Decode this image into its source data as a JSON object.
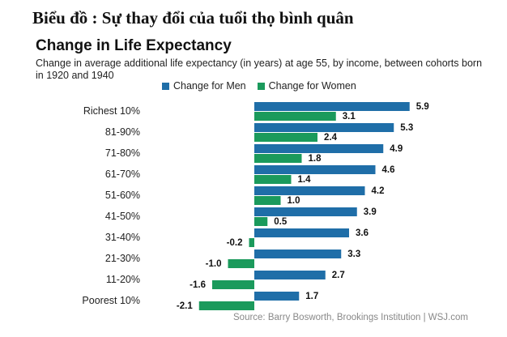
{
  "header": {
    "caption": "Biểu đồ : Sự thay đổi của tuổi thọ bình quân"
  },
  "chart_data": {
    "type": "bar",
    "orientation": "horizontal",
    "title": "Change in Life Expectancy",
    "subtitle": "Change in average additional life expectancy (in years) at age 55, by income, between cohorts born in 1920 and 1940",
    "categories": [
      "Richest 10%",
      "81-90%",
      "71-80%",
      "61-70%",
      "51-60%",
      "41-50%",
      "31-40%",
      "21-30%",
      "11-20%",
      "Poorest 10%"
    ],
    "series": [
      {
        "name": "Change for Men",
        "color": "#1f6ea8",
        "values": [
          5.9,
          5.3,
          4.9,
          4.6,
          4.2,
          3.9,
          3.6,
          3.3,
          2.7,
          1.7
        ]
      },
      {
        "name": "Change for Women",
        "color": "#1b9a5c",
        "values": [
          3.1,
          2.4,
          1.8,
          1.4,
          1.0,
          0.5,
          -0.2,
          -1.0,
          -1.6,
          -2.1
        ]
      }
    ],
    "legend_position": "top",
    "grid": false,
    "source": "Source: Barry Bosworth, Brookings Institution  |  WSJ.com"
  }
}
